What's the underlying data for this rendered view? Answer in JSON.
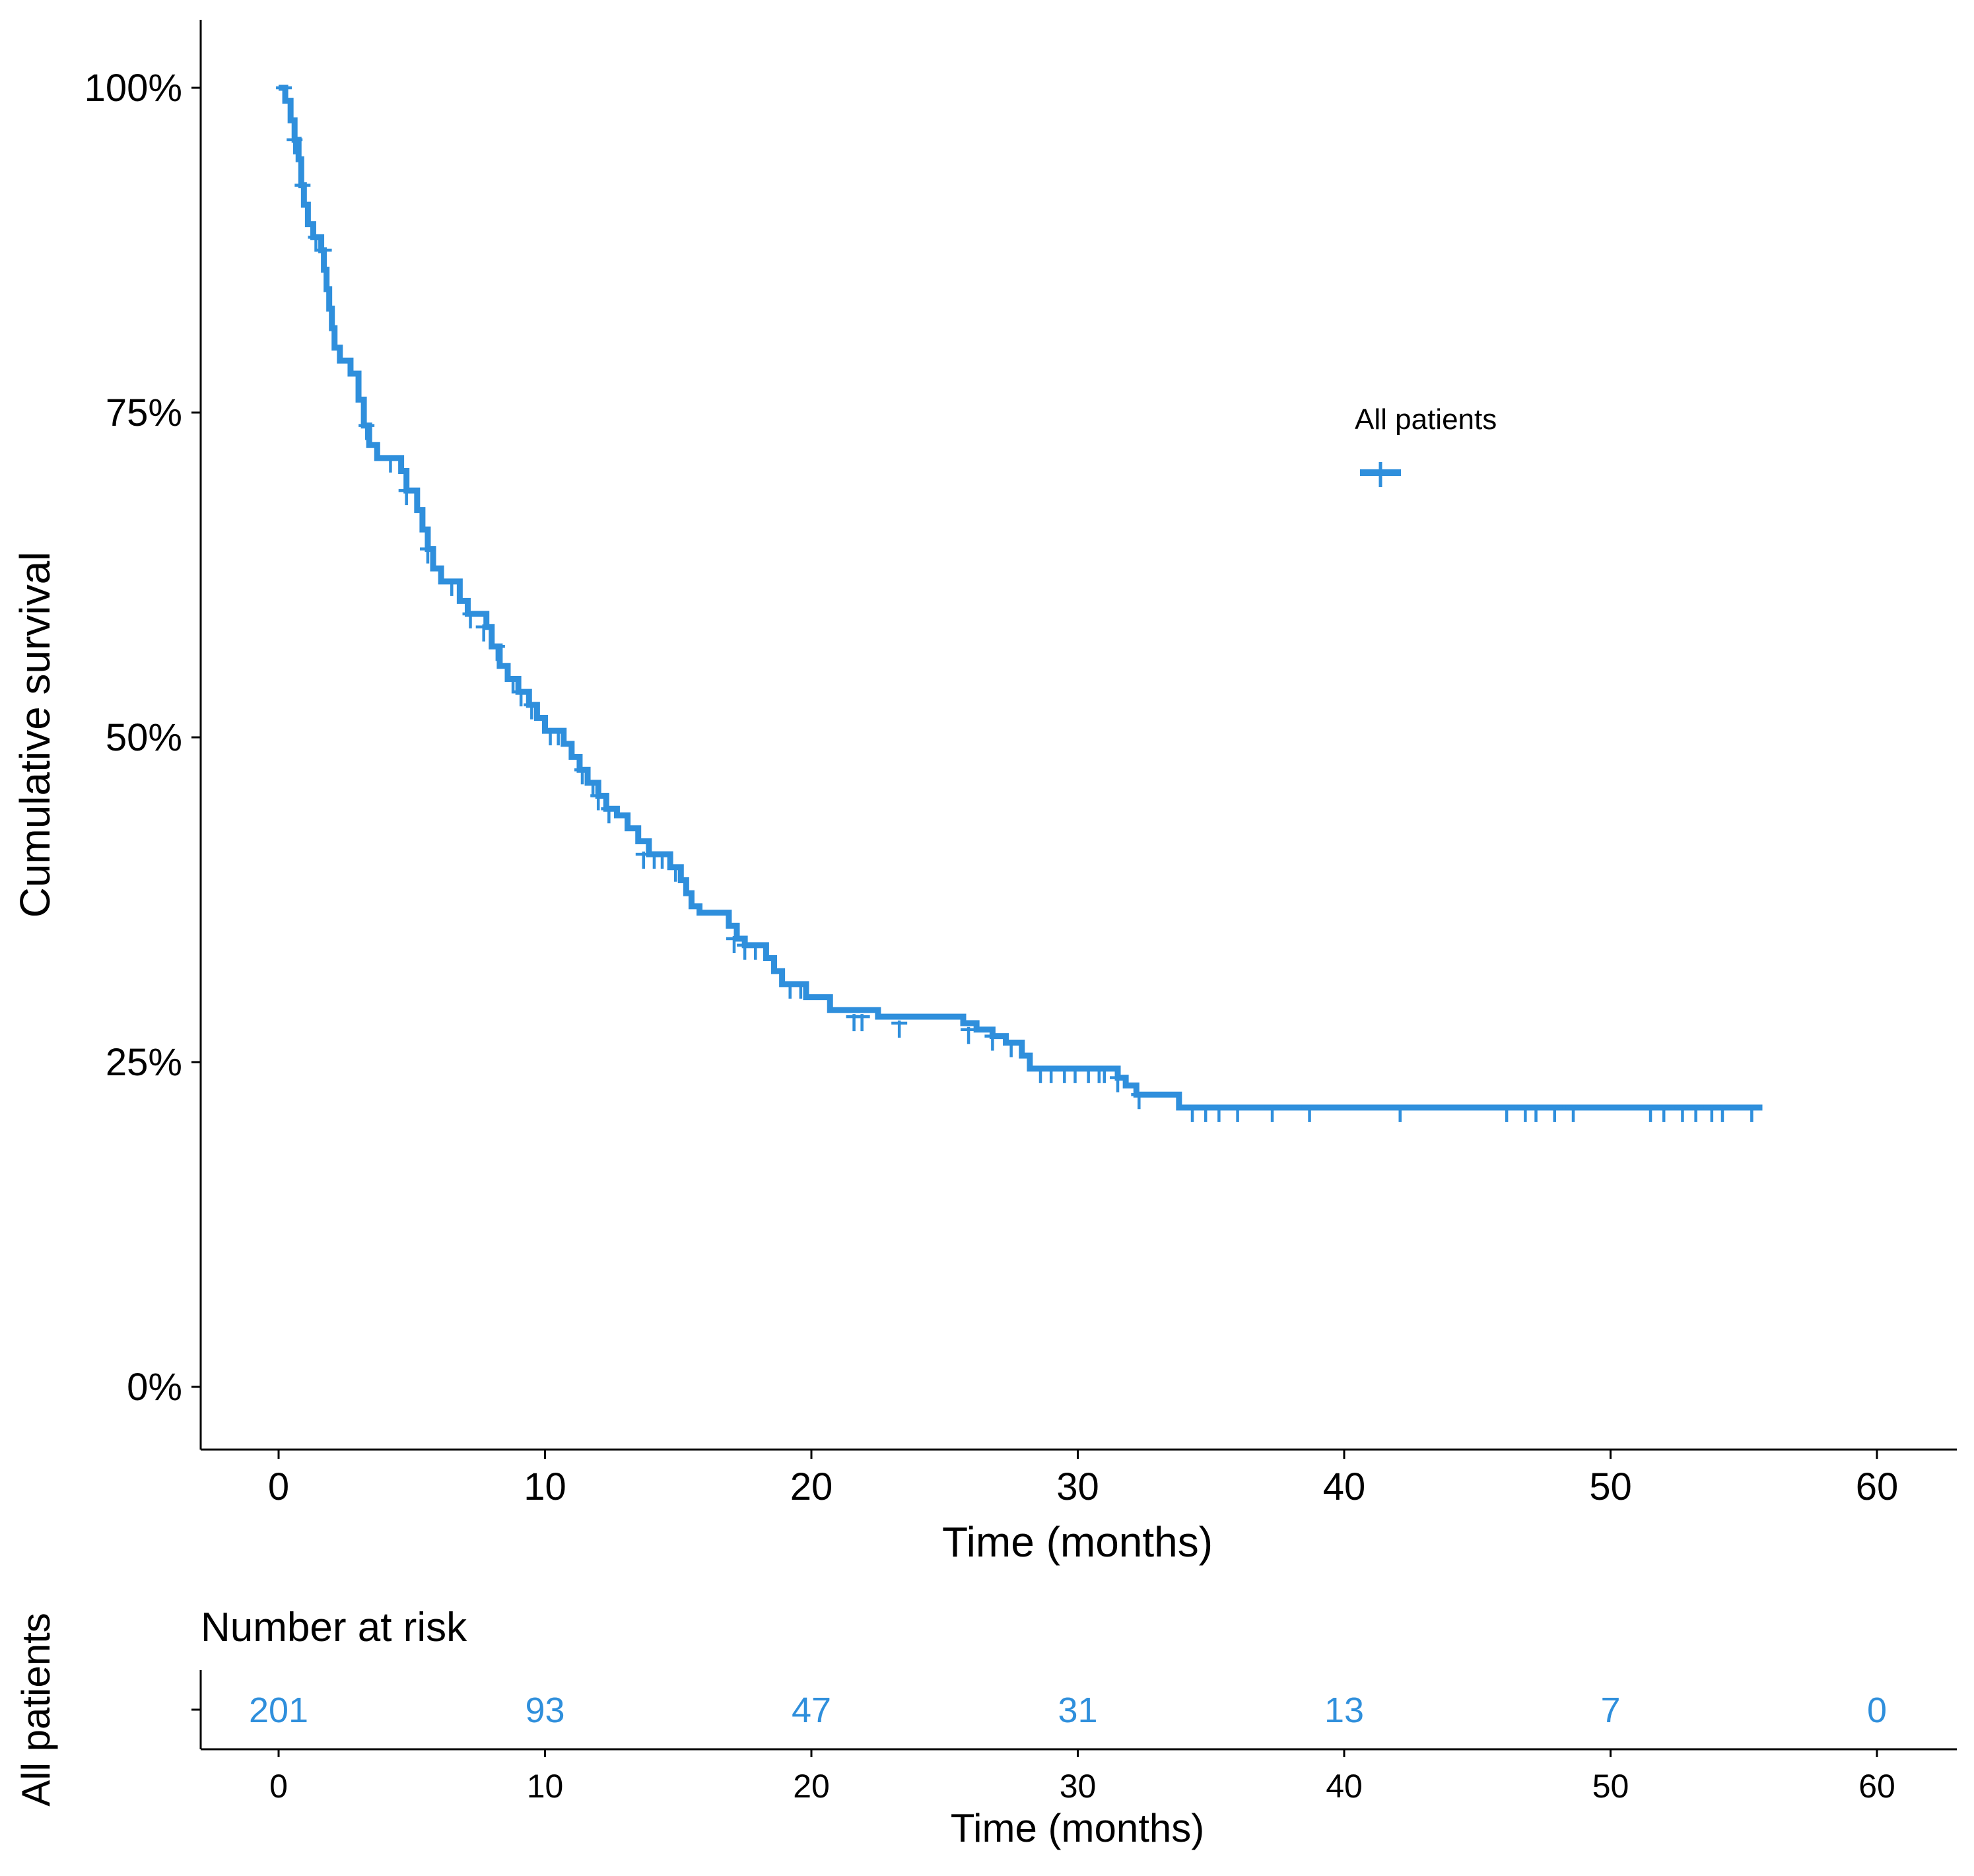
{
  "chart_data": {
    "type": "line",
    "subtype": "kaplan-meier",
    "title": "",
    "xlabel": "Time (months)",
    "ylabel": "Cumulative survival",
    "xlim": [
      0,
      60
    ],
    "ylim": [
      0,
      1
    ],
    "x_ticks": [
      0,
      10,
      20,
      30,
      40,
      50,
      60
    ],
    "x_tick_labels": [
      "0",
      "10",
      "20",
      "30",
      "40",
      "50",
      "60"
    ],
    "y_ticks": [
      0,
      0.25,
      0.5,
      0.75,
      1.0
    ],
    "y_tick_labels": [
      "0%",
      "25%",
      "50%",
      "75%",
      "100%"
    ],
    "grid": false,
    "legend": {
      "title": "All patients",
      "placement": "top-right"
    },
    "series": [
      {
        "name": "All patients",
        "color": "#2f8fdc",
        "steps": [
          [
            0,
            1.0
          ],
          [
            0.25,
            0.99
          ],
          [
            0.45,
            0.975
          ],
          [
            0.6,
            0.96
          ],
          [
            0.75,
            0.945
          ],
          [
            0.85,
            0.925
          ],
          [
            0.95,
            0.91
          ],
          [
            1.1,
            0.895
          ],
          [
            1.3,
            0.885
          ],
          [
            1.6,
            0.875
          ],
          [
            1.7,
            0.86
          ],
          [
            1.8,
            0.845
          ],
          [
            1.9,
            0.83
          ],
          [
            2.0,
            0.815
          ],
          [
            2.1,
            0.8
          ],
          [
            2.3,
            0.79
          ],
          [
            2.7,
            0.78
          ],
          [
            3.0,
            0.76
          ],
          [
            3.2,
            0.74
          ],
          [
            3.4,
            0.725
          ],
          [
            3.7,
            0.715
          ],
          [
            4.6,
            0.705
          ],
          [
            4.8,
            0.69
          ],
          [
            5.2,
            0.675
          ],
          [
            5.4,
            0.66
          ],
          [
            5.6,
            0.645
          ],
          [
            5.8,
            0.63
          ],
          [
            6.1,
            0.62
          ],
          [
            6.8,
            0.605
          ],
          [
            7.1,
            0.595
          ],
          [
            7.8,
            0.585
          ],
          [
            8.0,
            0.57
          ],
          [
            8.3,
            0.555
          ],
          [
            8.6,
            0.545
          ],
          [
            9.0,
            0.535
          ],
          [
            9.4,
            0.525
          ],
          [
            9.7,
            0.515
          ],
          [
            10.0,
            0.505
          ],
          [
            10.7,
            0.495
          ],
          [
            11.0,
            0.485
          ],
          [
            11.3,
            0.475
          ],
          [
            11.6,
            0.465
          ],
          [
            12.0,
            0.455
          ],
          [
            12.3,
            0.445
          ],
          [
            12.7,
            0.44
          ],
          [
            13.1,
            0.43
          ],
          [
            13.5,
            0.42
          ],
          [
            13.9,
            0.41
          ],
          [
            14.7,
            0.4
          ],
          [
            15.1,
            0.39
          ],
          [
            15.3,
            0.38
          ],
          [
            15.5,
            0.37
          ],
          [
            15.8,
            0.365
          ],
          [
            16.9,
            0.355
          ],
          [
            17.2,
            0.345
          ],
          [
            17.5,
            0.34
          ],
          [
            18.3,
            0.33
          ],
          [
            18.6,
            0.32
          ],
          [
            18.9,
            0.31
          ],
          [
            19.8,
            0.3
          ],
          [
            20.7,
            0.29
          ],
          [
            22.5,
            0.285
          ],
          [
            25.7,
            0.28
          ],
          [
            26.2,
            0.275
          ],
          [
            26.8,
            0.27
          ],
          [
            27.3,
            0.265
          ],
          [
            27.9,
            0.255
          ],
          [
            28.2,
            0.245
          ],
          [
            31.5,
            0.238
          ],
          [
            31.8,
            0.232
          ],
          [
            32.2,
            0.225
          ],
          [
            33.8,
            0.215
          ],
          [
            55.7,
            0.215
          ]
        ],
        "censors": [
          [
            0.2,
            1.0
          ],
          [
            0.6,
            0.96
          ],
          [
            0.9,
            0.925
          ],
          [
            1.4,
            0.885
          ],
          [
            1.7,
            0.875
          ],
          [
            3.3,
            0.74
          ],
          [
            4.2,
            0.715
          ],
          [
            4.8,
            0.69
          ],
          [
            5.6,
            0.645
          ],
          [
            6.5,
            0.62
          ],
          [
            7.2,
            0.595
          ],
          [
            7.7,
            0.585
          ],
          [
            8.2,
            0.57
          ],
          [
            8.8,
            0.545
          ],
          [
            9.1,
            0.535
          ],
          [
            9.5,
            0.525
          ],
          [
            10.2,
            0.505
          ],
          [
            10.5,
            0.505
          ],
          [
            11.4,
            0.475
          ],
          [
            11.8,
            0.465
          ],
          [
            12.0,
            0.455
          ],
          [
            12.4,
            0.445
          ],
          [
            13.7,
            0.41
          ],
          [
            14.1,
            0.41
          ],
          [
            14.4,
            0.41
          ],
          [
            14.9,
            0.4
          ],
          [
            17.1,
            0.345
          ],
          [
            17.5,
            0.34
          ],
          [
            17.9,
            0.34
          ],
          [
            19.2,
            0.31
          ],
          [
            19.6,
            0.31
          ],
          [
            21.6,
            0.285
          ],
          [
            21.9,
            0.285
          ],
          [
            23.3,
            0.28
          ],
          [
            25.9,
            0.275
          ],
          [
            26.8,
            0.27
          ],
          [
            27.5,
            0.265
          ],
          [
            28.6,
            0.245
          ],
          [
            29.0,
            0.245
          ],
          [
            29.5,
            0.245
          ],
          [
            29.9,
            0.245
          ],
          [
            30.4,
            0.245
          ],
          [
            30.8,
            0.245
          ],
          [
            31.0,
            0.245
          ],
          [
            31.5,
            0.238
          ],
          [
            32.3,
            0.225
          ],
          [
            34.3,
            0.215
          ],
          [
            34.8,
            0.215
          ],
          [
            35.3,
            0.215
          ],
          [
            36.0,
            0.215
          ],
          [
            37.3,
            0.215
          ],
          [
            38.7,
            0.215
          ],
          [
            42.1,
            0.215
          ],
          [
            46.1,
            0.215
          ],
          [
            46.8,
            0.215
          ],
          [
            47.2,
            0.215
          ],
          [
            47.9,
            0.215
          ],
          [
            48.6,
            0.215
          ],
          [
            51.5,
            0.215
          ],
          [
            52.0,
            0.215
          ],
          [
            52.7,
            0.215
          ],
          [
            53.2,
            0.215
          ],
          [
            53.8,
            0.215
          ],
          [
            54.2,
            0.215
          ],
          [
            55.3,
            0.215
          ]
        ]
      }
    ],
    "risk_table": {
      "title": "Number at risk",
      "xlabel": "Time (months)",
      "row_label": "All patients",
      "times": [
        0,
        10,
        20,
        30,
        40,
        50,
        60
      ],
      "time_labels": [
        "0",
        "10",
        "20",
        "30",
        "40",
        "50",
        "60"
      ],
      "counts": [
        "201",
        "93",
        "47",
        "31",
        "13",
        "7",
        "0"
      ]
    }
  }
}
